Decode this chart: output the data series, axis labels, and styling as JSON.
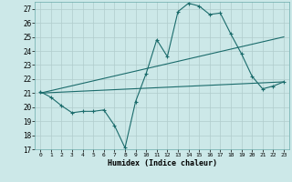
{
  "xlabel": "Humidex (Indice chaleur)",
  "ylabel": "",
  "background_color": "#cce8e8",
  "grid_color": "#b0cccc",
  "line_color": "#1a6b6b",
  "xlim": [
    -0.5,
    23.5
  ],
  "ylim": [
    17,
    27.5
  ],
  "yticks": [
    17,
    18,
    19,
    20,
    21,
    22,
    23,
    24,
    25,
    26,
    27
  ],
  "xticks": [
    0,
    1,
    2,
    3,
    4,
    5,
    6,
    7,
    8,
    9,
    10,
    11,
    12,
    13,
    14,
    15,
    16,
    17,
    18,
    19,
    20,
    21,
    22,
    23
  ],
  "line1_x": [
    0,
    1,
    2,
    3,
    4,
    5,
    6,
    7,
    8,
    9,
    10,
    11,
    12,
    13,
    14,
    15,
    16,
    17,
    18,
    19,
    20,
    21,
    22,
    23
  ],
  "line1_y": [
    21.1,
    20.7,
    20.1,
    19.6,
    19.7,
    19.7,
    19.8,
    18.7,
    17.1,
    20.4,
    22.4,
    24.8,
    23.6,
    26.8,
    27.4,
    27.2,
    26.6,
    26.7,
    25.2,
    23.8,
    22.2,
    21.3,
    21.5,
    21.8
  ],
  "line2_x": [
    0,
    23
  ],
  "line2_y": [
    21.0,
    25.0
  ],
  "line3_x": [
    0,
    23
  ],
  "line3_y": [
    21.0,
    21.8
  ]
}
